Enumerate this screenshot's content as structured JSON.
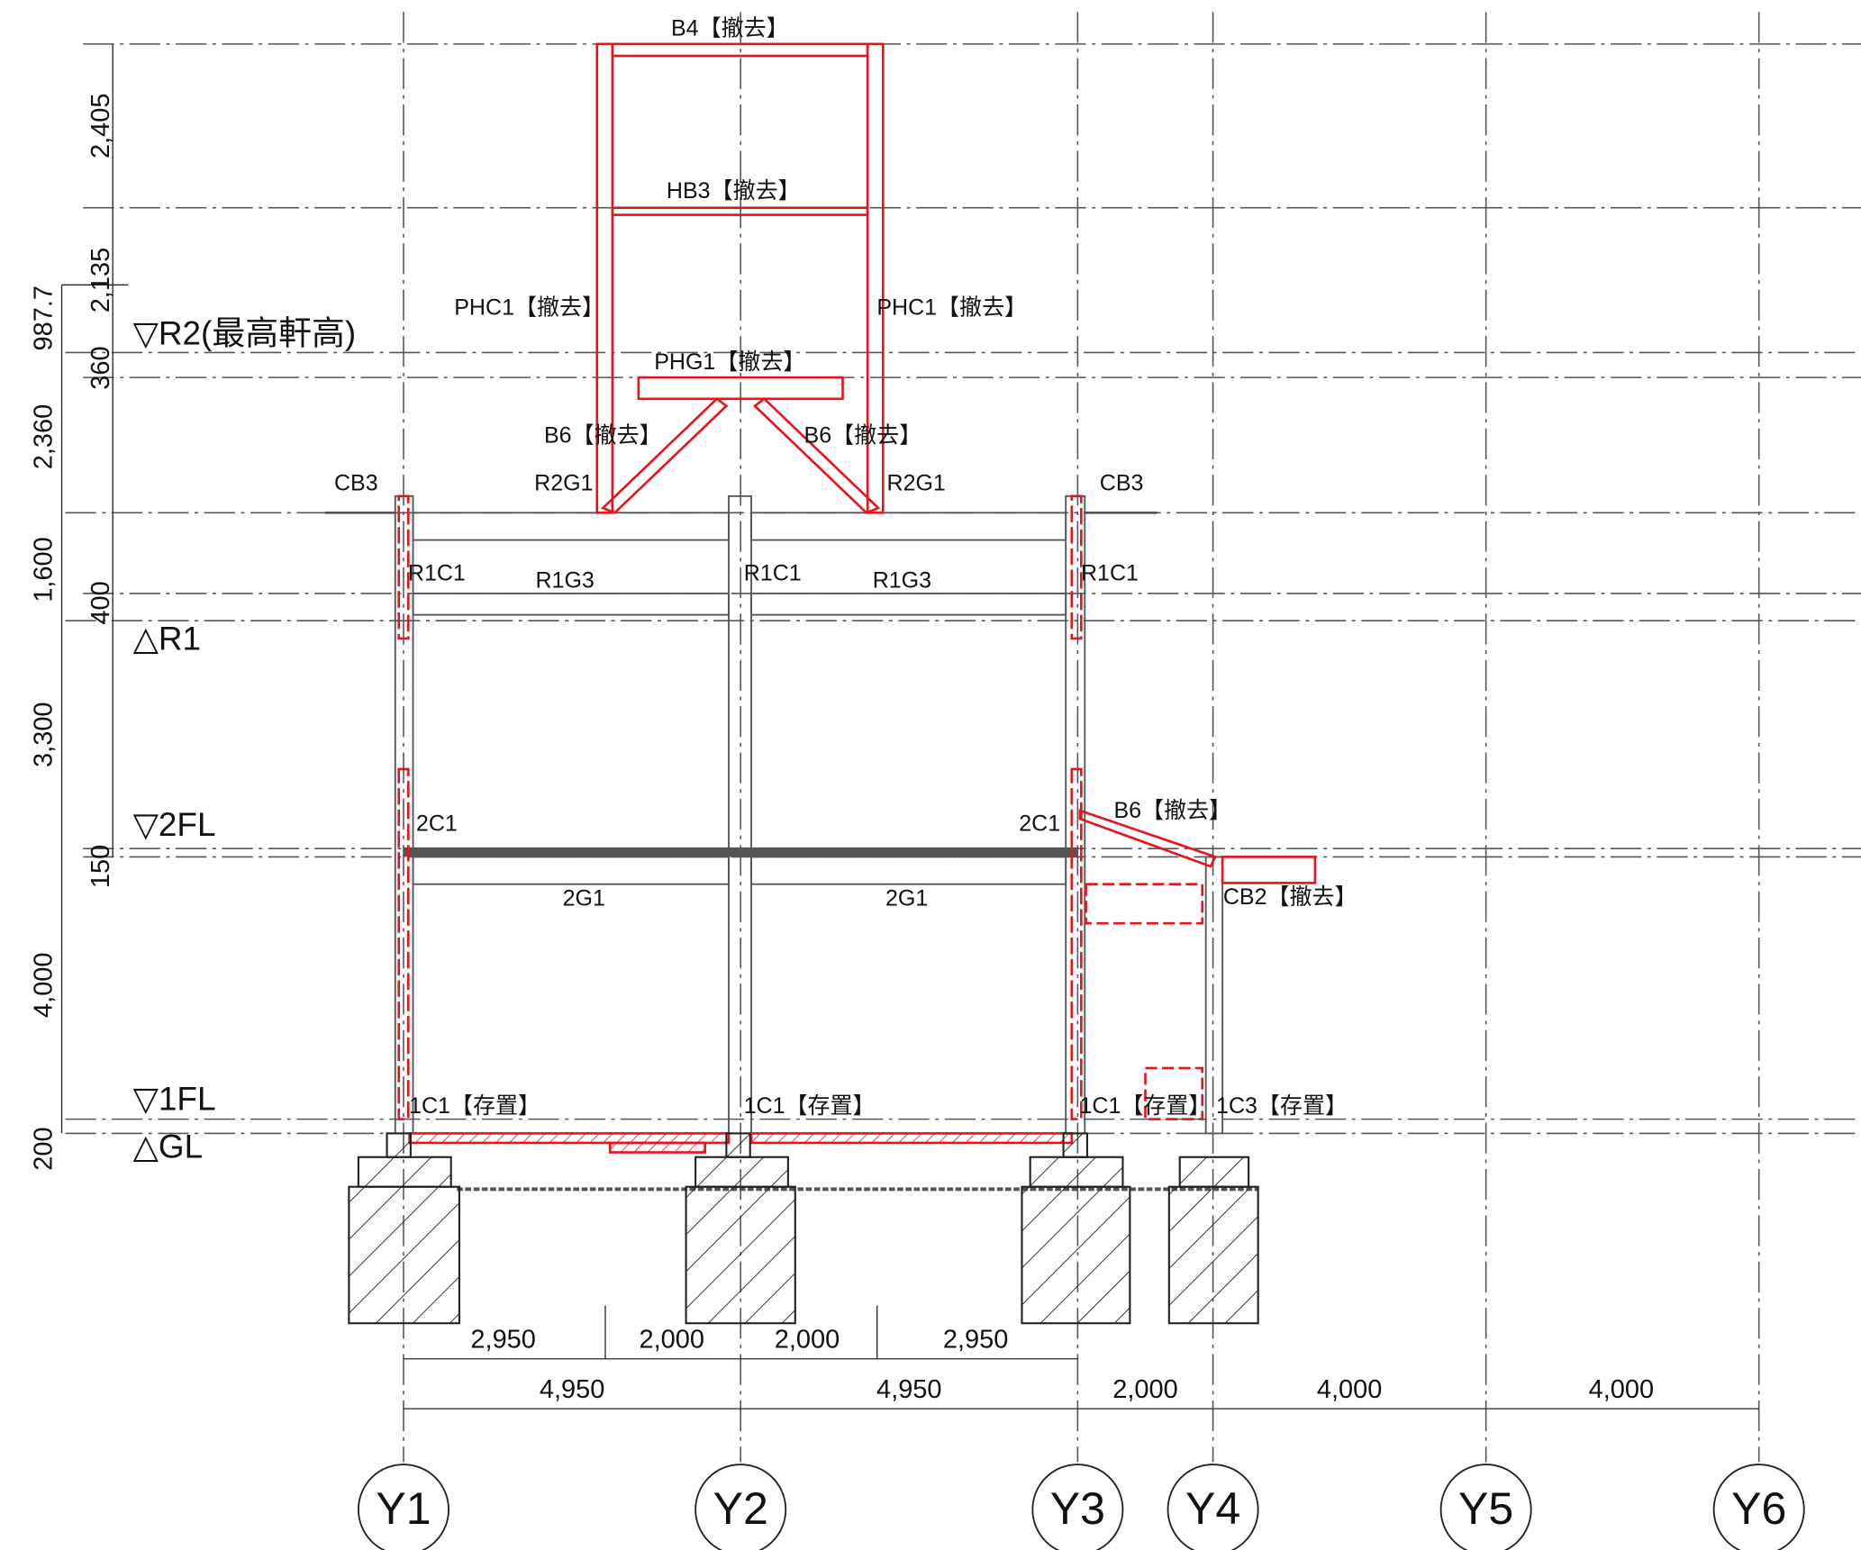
{
  "grid_axes": [
    "Y1",
    "Y2",
    "Y3",
    "Y4",
    "Y5",
    "Y6"
  ],
  "levels": [
    "▽R2(最高軒高)",
    "△R1",
    "▽2FL",
    "▽1FL",
    "△GL"
  ],
  "vertical_dimensions": [
    "2,405",
    "2,135",
    "987.7",
    "360",
    "2,360",
    "1,600",
    "400",
    "3,300",
    "150",
    "4,000",
    "200"
  ],
  "horizontal_dimensions": {
    "sub": [
      "2,950",
      "2,000",
      "2,000",
      "2,950"
    ],
    "main": [
      "4,950",
      "4,950",
      "2,000",
      "4,000",
      "4,000"
    ]
  },
  "members": [
    "B4【撤去】",
    "HB3【撤去】",
    "PHC1【撤去】",
    "PHC1【撤去】",
    "PHG1【撤去】",
    "B6【撤去】",
    "B6【撤去】",
    "CB3",
    "R2G1",
    "R2G1",
    "CB3",
    "R1C1",
    "R1C1",
    "R1C1",
    "R1G3",
    "R1G3",
    "2C1",
    "2C1",
    "B6【撤去】",
    "2G1",
    "2G1",
    "CB2【撤去】",
    "1C1【存置】",
    "1C1【存置】",
    "1C1【存置】",
    "1C3【存置】"
  ]
}
